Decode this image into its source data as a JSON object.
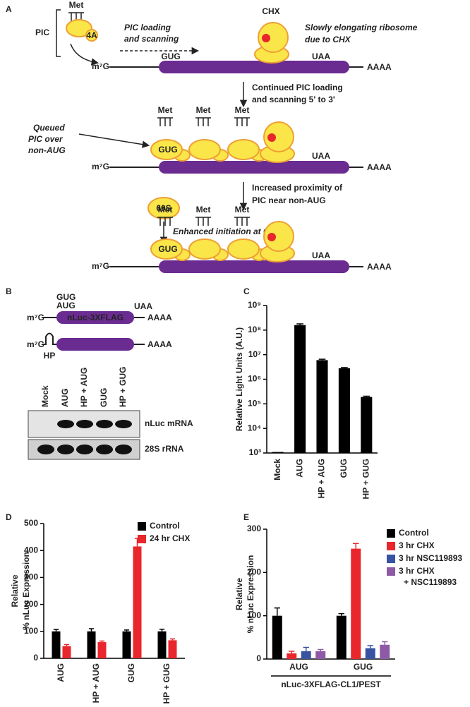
{
  "figure": {
    "panel_labels": [
      "A",
      "B",
      "C",
      "D",
      "E"
    ],
    "a": {
      "pic_label": "PIC",
      "met": "Met",
      "eif4a": "4A",
      "chx": "CHX",
      "loading": [
        "PIC loading",
        "and scanning"
      ],
      "slow": [
        "Slowly elongating ribosome",
        "due to CHX"
      ],
      "mrna": {
        "cap": "m⁷G",
        "start": "GUG",
        "stop": "UAA",
        "tail": "AAAA"
      },
      "step1": [
        "Continued PIC loading",
        "and scanning 5' to 3'"
      ],
      "queued": [
        "Queued",
        "PIC over",
        "non-AUG"
      ],
      "step2": [
        "Increased proximity of",
        "PIC near non-AUG"
      ],
      "subunit": "60S",
      "enhanced": "Enhanced initiation at GUG"
    },
    "b": {
      "codons": [
        "GUG",
        "AUG"
      ],
      "stop": "UAA",
      "cap": "m⁷G",
      "orf": "nLuc-3XFLAG",
      "tail": "AAAA",
      "hairpin": "HP",
      "lanes": [
        "Mock",
        "AUG",
        "HP + AUG",
        "GUG",
        "HP + GUG"
      ],
      "blots": [
        "nLuc mRNA",
        "28S rRNA"
      ]
    }
  },
  "chart_data": [
    {
      "type": "bar",
      "y_label": [
        "Relative Light Units (A.U.)"
      ],
      "log_scale": true,
      "categories": [
        "Mock",
        "AUG",
        "HP + AUG",
        "GUG",
        "HP + GUG"
      ],
      "series": [
        {
          "color": "#000000",
          "values": [
            1100,
            160000000,
            6000000,
            2800000,
            190000
          ],
          "errors": [
            null,
            20000000,
            500000,
            200000,
            15000
          ]
        }
      ],
      "ylim": [
        1000,
        1000000000
      ],
      "yticks": [
        {
          "value": 1000,
          "label": "10³"
        },
        {
          "value": 10000,
          "label": "10⁴"
        },
        {
          "value": 100000,
          "label": "10⁵"
        },
        {
          "value": 1000000,
          "label": "10⁶"
        },
        {
          "value": 10000000,
          "label": "10⁷"
        },
        {
          "value": 100000000,
          "label": "10⁸"
        },
        {
          "value": 1000000000,
          "label": "10⁹"
        }
      ]
    },
    {
      "type": "bar",
      "y_label": [
        "Relative",
        "% nLuc Expression"
      ],
      "legend": "upper right",
      "categories": [
        "AUG",
        "HP + AUG",
        "GUG",
        "HP + GUG"
      ],
      "series": [
        {
          "name": "Control",
          "color": "#000000",
          "values": [
            100,
            100,
            100,
            100
          ],
          "errors": [
            7,
            10,
            5,
            8
          ]
        },
        {
          "name": "24 hr CHX",
          "color": "#e8262b",
          "values": [
            45,
            60,
            415,
            67
          ],
          "errors": [
            6,
            4,
            30,
            5
          ]
        }
      ],
      "ylim": [
        0,
        500
      ],
      "yticks": [
        0,
        100,
        200,
        300,
        400,
        500
      ]
    },
    {
      "type": "bar",
      "y_label": [
        "Relative",
        "% nLuc Expression"
      ],
      "x_label": "nLuc-3XFLAG-CL1/PEST",
      "legend": "upper right",
      "categories": [
        "AUG",
        "GUG"
      ],
      "series": [
        {
          "name": "Control",
          "color": "#000000",
          "values": [
            100,
            100
          ],
          "errors": [
            18,
            5
          ]
        },
        {
          "name": "3 hr CHX",
          "color": "#e8262b",
          "values": [
            13,
            255
          ],
          "errors": [
            5,
            12
          ]
        },
        {
          "name": "3 hr NSC119893",
          "color": "#3953a4",
          "values": [
            18,
            25
          ],
          "errors": [
            9,
            6
          ]
        },
        {
          "name": "3 hr CHX + NSC119893",
          "color": "#8e5aa5",
          "values": [
            18,
            33
          ],
          "errors": [
            4,
            7
          ]
        }
      ],
      "ylim": [
        0,
        300
      ],
      "yticks": [
        0,
        100,
        200,
        300
      ]
    }
  ]
}
